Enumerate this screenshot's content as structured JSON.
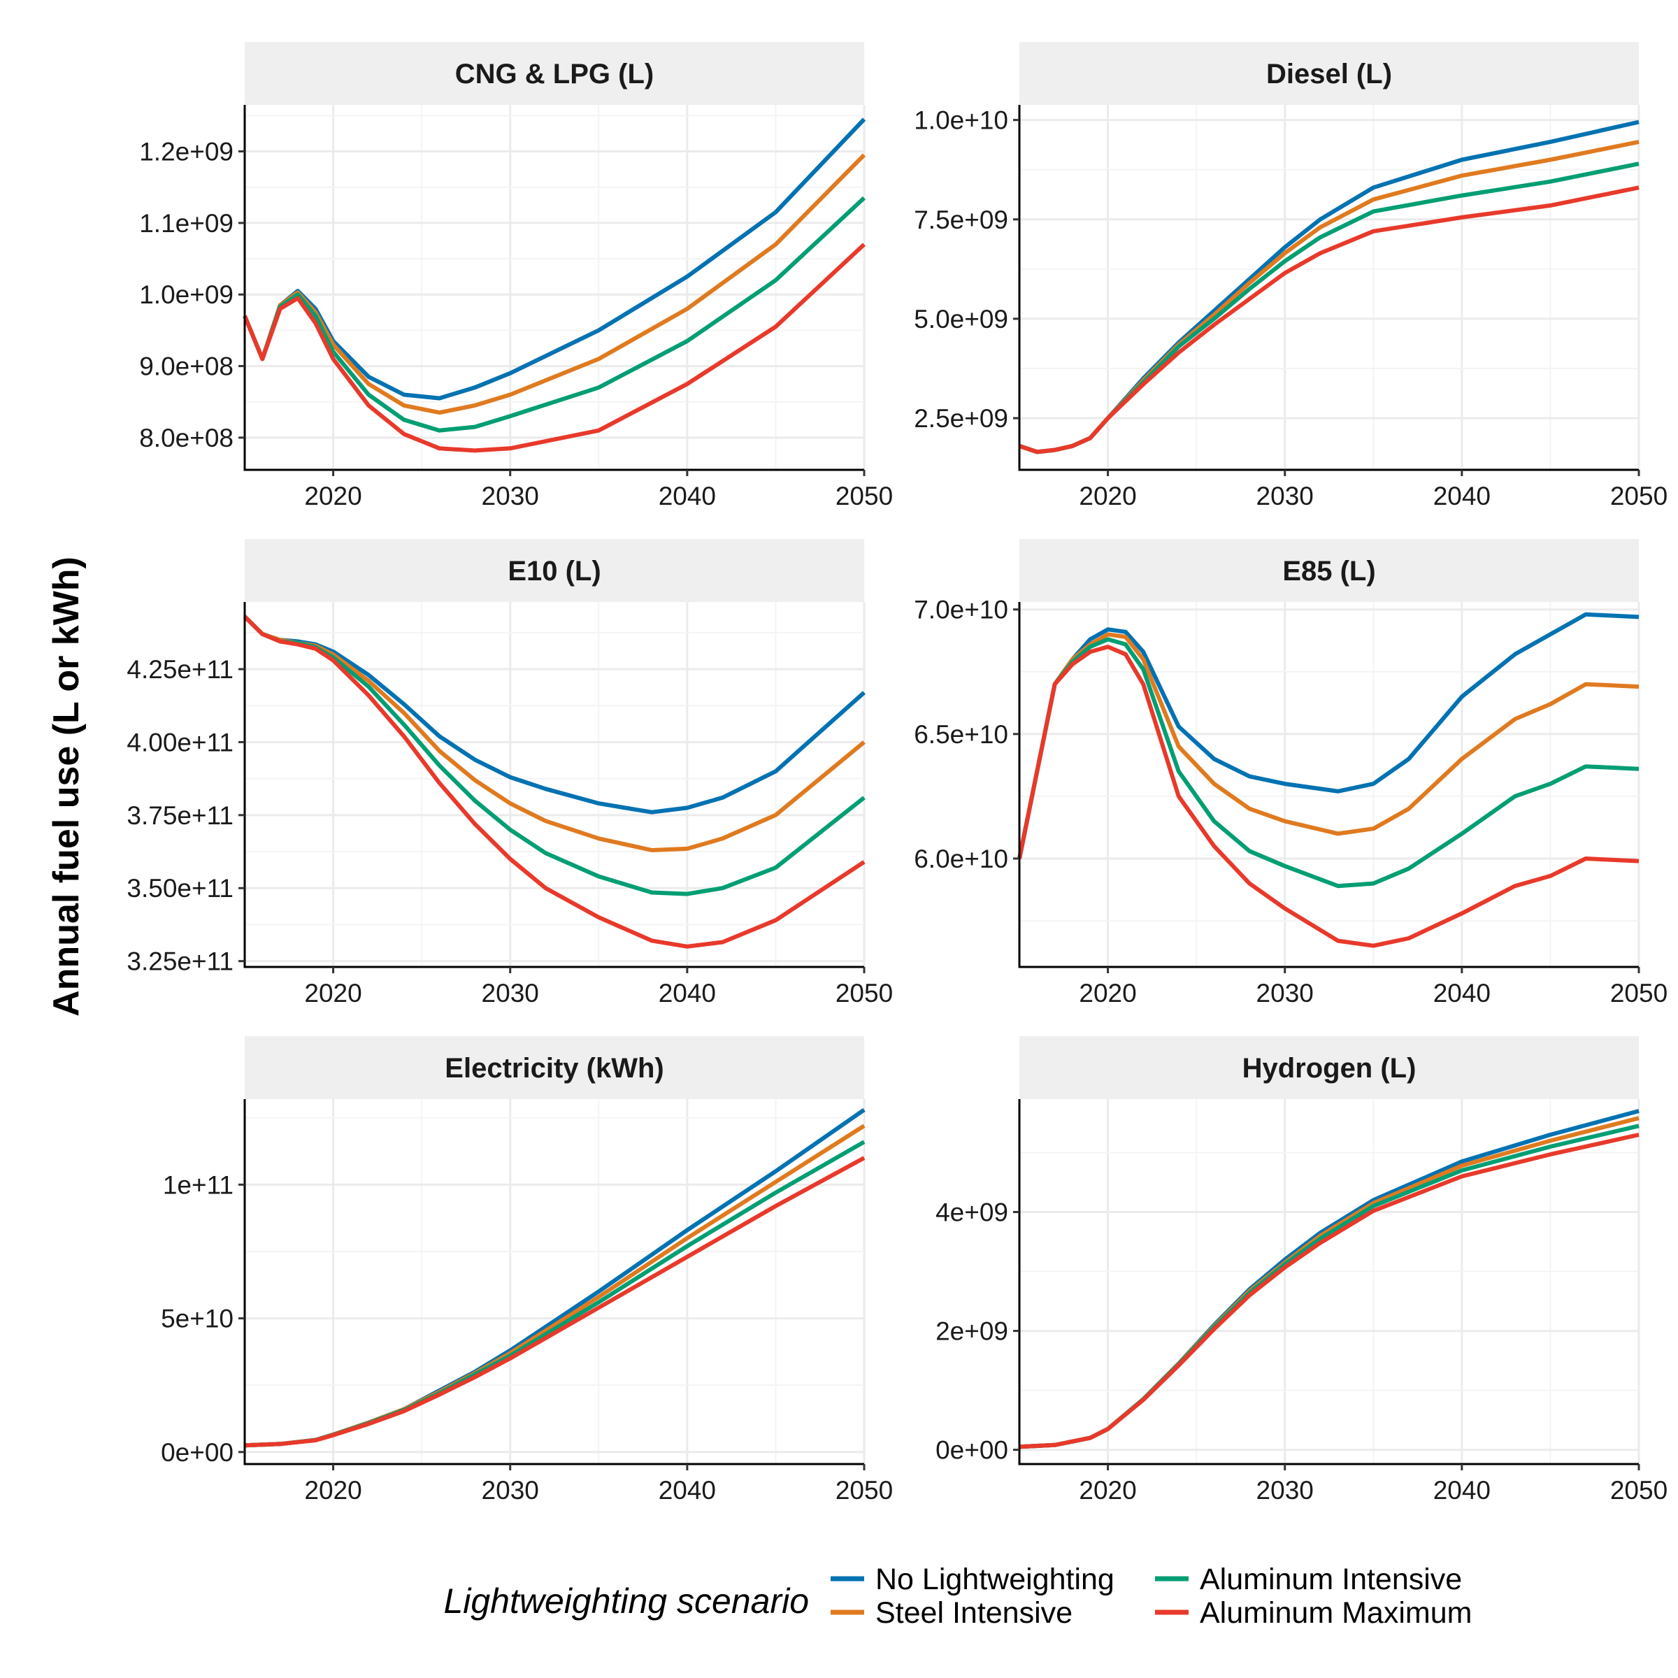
{
  "colors": {
    "No Lightweighting": "#0072B2",
    "Steel Intensive": "#E07A1F",
    "Aluminum Intensive": "#009E73",
    "Aluminum Maximum": "#E8392B"
  },
  "legend": {
    "title": "Lightweighting scenario",
    "items": [
      "No Lightweighting",
      "Steel Intensive",
      "Aluminum Intensive",
      "Aluminum Maximum"
    ]
  },
  "ylabel": "Annual fuel use (L or kWh)",
  "chart_data": [
    {
      "type": "line",
      "title": "CNG & LPG (L)",
      "xlim": [
        2015,
        2050
      ],
      "ylim": [
        755000000.0,
        1265000000.0
      ],
      "xticks": [
        2020,
        2030,
        2040,
        2050
      ],
      "yticks": [
        800000000.0,
        900000000.0,
        1000000000.0,
        1100000000.0,
        1200000000.0
      ],
      "ytick_labels": [
        "8.0e+08",
        "9.0e+08",
        "1.0e+09",
        "1.1e+09",
        "1.2e+09"
      ],
      "x": [
        2015,
        2016,
        2017,
        2018,
        2019,
        2020,
        2022,
        2024,
        2026,
        2028,
        2030,
        2035,
        2040,
        2045,
        2050
      ],
      "series": [
        {
          "name": "No Lightweighting",
          "values": [
            970000000.0,
            910000000.0,
            985000000.0,
            1005000000.0,
            980000000.0,
            935000000.0,
            885000000.0,
            860000000.0,
            855000000.0,
            870000000.0,
            890000000.0,
            950000000.0,
            1025000000.0,
            1115000000.0,
            1245000000.0
          ]
        },
        {
          "name": "Steel Intensive",
          "values": [
            970000000.0,
            910000000.0,
            985000000.0,
            1003000000.0,
            975000000.0,
            930000000.0,
            875000000.0,
            845000000.0,
            835000000.0,
            845000000.0,
            860000000.0,
            910000000.0,
            980000000.0,
            1070000000.0,
            1195000000.0
          ]
        },
        {
          "name": "Aluminum Intensive",
          "values": [
            970000000.0,
            910000000.0,
            983000000.0,
            1000000000.0,
            970000000.0,
            920000000.0,
            860000000.0,
            825000000.0,
            810000000.0,
            815000000.0,
            830000000.0,
            870000000.0,
            935000000.0,
            1020000000.0,
            1135000000.0
          ]
        },
        {
          "name": "Aluminum Maximum",
          "values": [
            970000000.0,
            910000000.0,
            980000000.0,
            995000000.0,
            960000000.0,
            910000000.0,
            845000000.0,
            805000000.0,
            785000000.0,
            782000000.0,
            785000000.0,
            810000000.0,
            875000000.0,
            955000000.0,
            1070000000.0
          ]
        }
      ]
    },
    {
      "type": "line",
      "title": "Diesel (L)",
      "xlim": [
        2015,
        2050
      ],
      "ylim": [
        1200000000.0,
        10380000000.0
      ],
      "xticks": [
        2020,
        2030,
        2040,
        2050
      ],
      "yticks": [
        2500000000.0,
        5000000000.0,
        7500000000.0,
        10000000000.0
      ],
      "ytick_labels": [
        "2.5e+09",
        "5.0e+09",
        "7.5e+09",
        "1.0e+10"
      ],
      "x": [
        2015,
        2016,
        2017,
        2018,
        2019,
        2020,
        2022,
        2024,
        2026,
        2028,
        2030,
        2032,
        2035,
        2040,
        2045,
        2050
      ],
      "series": [
        {
          "name": "No Lightweighting",
          "values": [
            1800000000.0,
            1650000000.0,
            1700000000.0,
            1800000000.0,
            2000000000.0,
            2500000000.0,
            3500000000.0,
            4400000000.0,
            5200000000.0,
            6000000000.0,
            6800000000.0,
            7500000000.0,
            8300000000.0,
            9000000000.0,
            9450000000.0,
            9950000000.0
          ]
        },
        {
          "name": "Steel Intensive",
          "values": [
            1800000000.0,
            1650000000.0,
            1700000000.0,
            1800000000.0,
            2000000000.0,
            2500000000.0,
            3450000000.0,
            4350000000.0,
            5100000000.0,
            5900000000.0,
            6650000000.0,
            7300000000.0,
            8000000000.0,
            8600000000.0,
            9000000000.0,
            9450000000.0
          ]
        },
        {
          "name": "Aluminum Intensive",
          "values": [
            1800000000.0,
            1650000000.0,
            1700000000.0,
            1800000000.0,
            2000000000.0,
            2500000000.0,
            3400000000.0,
            4300000000.0,
            5000000000.0,
            5750000000.0,
            6450000000.0,
            7050000000.0,
            7700000000.0,
            8100000000.0,
            8450000000.0,
            8900000000.0
          ]
        },
        {
          "name": "Aluminum Maximum",
          "values": [
            1800000000.0,
            1650000000.0,
            1700000000.0,
            1800000000.0,
            2000000000.0,
            2500000000.0,
            3350000000.0,
            4150000000.0,
            4850000000.0,
            5500000000.0,
            6150000000.0,
            6650000000.0,
            7200000000.0,
            7550000000.0,
            7850000000.0,
            8300000000.0
          ]
        }
      ]
    },
    {
      "type": "line",
      "title": "E10 (L)",
      "xlim": [
        2015,
        2050
      ],
      "ylim": [
        323000000000.0,
        448000000000.0
      ],
      "xticks": [
        2020,
        2030,
        2040,
        2050
      ],
      "yticks": [
        325000000000.0,
        350000000000.0,
        375000000000.0,
        400000000000.0,
        425000000000.0
      ],
      "ytick_labels": [
        "3.25e+11",
        "3.50e+11",
        "3.75e+11",
        "4.00e+11",
        "4.25e+11"
      ],
      "x": [
        2015,
        2016,
        2017,
        2018,
        2019,
        2020,
        2022,
        2024,
        2026,
        2028,
        2030,
        2032,
        2035,
        2038,
        2040,
        2042,
        2045,
        2050
      ],
      "series": [
        {
          "name": "No Lightweighting",
          "values": [
            443000000000.0,
            437000000000.0,
            435000000000.0,
            434500000000.0,
            433500000000.0,
            431000000000.0,
            423000000000.0,
            413000000000.0,
            402000000000.0,
            394000000000.0,
            388000000000.0,
            384000000000.0,
            379000000000.0,
            376000000000.0,
            377500000000.0,
            381000000000.0,
            390000000000.0,
            417000000000.0
          ]
        },
        {
          "name": "Steel Intensive",
          "values": [
            443000000000.0,
            437000000000.0,
            435000000000.0,
            434000000000.0,
            433000000000.0,
            430000000000.0,
            421000000000.0,
            410000000000.0,
            397000000000.0,
            387000000000.0,
            379000000000.0,
            373000000000.0,
            367000000000.0,
            363000000000.0,
            363500000000.0,
            367000000000.0,
            375000000000.0,
            400000000000.0
          ]
        },
        {
          "name": "Aluminum Intensive",
          "values": [
            443000000000.0,
            437000000000.0,
            434500000000.0,
            434000000000.0,
            432500000000.0,
            429000000000.0,
            419000000000.0,
            406000000000.0,
            392000000000.0,
            380000000000.0,
            370000000000.0,
            362000000000.0,
            354000000000.0,
            348500000000.0,
            348000000000.0,
            350000000000.0,
            357000000000.0,
            381000000000.0
          ]
        },
        {
          "name": "Aluminum Maximum",
          "values": [
            443000000000.0,
            437000000000.0,
            434500000000.0,
            433500000000.0,
            432000000000.0,
            428000000000.0,
            416000000000.0,
            402000000000.0,
            386000000000.0,
            372000000000.0,
            360000000000.0,
            350000000000.0,
            340000000000.0,
            332000000000.0,
            330000000000.0,
            331500000000.0,
            339000000000.0,
            359000000000.0
          ]
        }
      ]
    },
    {
      "type": "line",
      "title": "E85 (L)",
      "xlim": [
        2015,
        2050
      ],
      "ylim": [
        55650000000.0,
        70300000000.0
      ],
      "xticks": [
        2020,
        2030,
        2040,
        2050
      ],
      "yticks": [
        60000000000.0,
        65000000000.0,
        70000000000.0
      ],
      "ytick_labels": [
        "6.0e+10",
        "6.5e+10",
        "7.0e+10"
      ],
      "x": [
        2015,
        2017,
        2018,
        2019,
        2020,
        2021,
        2022,
        2024,
        2026,
        2028,
        2030,
        2033,
        2035,
        2037,
        2040,
        2043,
        2045,
        2047,
        2050
      ],
      "series": [
        {
          "name": "No Lightweighting",
          "values": [
            60000000000.0,
            67000000000.0,
            68000000000.0,
            68800000000.0,
            69200000000.0,
            69100000000.0,
            68300000000.0,
            65300000000.0,
            64000000000.0,
            63300000000.0,
            63000000000.0,
            62700000000.0,
            63000000000.0,
            64000000000.0,
            66500000000.0,
            68200000000.0,
            69000000000.0,
            69800000000.0,
            69700000000.0
          ]
        },
        {
          "name": "Steel Intensive",
          "values": [
            60000000000.0,
            67000000000.0,
            68000000000.0,
            68600000000.0,
            69000000000.0,
            68900000000.0,
            68000000000.0,
            64500000000.0,
            63000000000.0,
            62000000000.0,
            61500000000.0,
            61000000000.0,
            61200000000.0,
            62000000000.0,
            64000000000.0,
            65600000000.0,
            66200000000.0,
            67000000000.0,
            66900000000.0
          ]
        },
        {
          "name": "Aluminum Intensive",
          "values": [
            60000000000.0,
            67000000000.0,
            67900000000.0,
            68500000000.0,
            68800000000.0,
            68600000000.0,
            67600000000.0,
            63500000000.0,
            61500000000.0,
            60300000000.0,
            59700000000.0,
            58900000000.0,
            59000000000.0,
            59600000000.0,
            61000000000.0,
            62500000000.0,
            63000000000.0,
            63700000000.0,
            63600000000.0
          ]
        },
        {
          "name": "Aluminum Maximum",
          "values": [
            60000000000.0,
            67000000000.0,
            67800000000.0,
            68300000000.0,
            68500000000.0,
            68200000000.0,
            67000000000.0,
            62500000000.0,
            60500000000.0,
            59000000000.0,
            58000000000.0,
            56700000000.0,
            56500000000.0,
            56800000000.0,
            57800000000.0,
            58900000000.0,
            59300000000.0,
            60000000000.0,
            59900000000.0
          ]
        }
      ]
    },
    {
      "type": "line",
      "title": "Electricity (kWh)",
      "xlim": [
        2015,
        2050
      ],
      "ylim": [
        -4500000000.0,
        132000000000.0
      ],
      "xticks": [
        2020,
        2030,
        2040,
        2050
      ],
      "yticks": [
        0,
        50000000000.0,
        100000000000.0
      ],
      "ytick_labels": [
        "0e+00",
        "5e+10",
        "1e+11"
      ],
      "x": [
        2015,
        2017,
        2019,
        2020,
        2022,
        2024,
        2026,
        2028,
        2030,
        2035,
        2040,
        2045,
        2050
      ],
      "series": [
        {
          "name": "No Lightweighting",
          "values": [
            2500000000.0,
            3000000000.0,
            4500000000.0,
            6500000000.0,
            11000000000.0,
            16000000000.0,
            23000000000.0,
            30000000000.0,
            38000000000.0,
            60000000000.0,
            83000000000.0,
            105000000000.0,
            128000000000.0
          ]
        },
        {
          "name": "Steel Intensive",
          "values": [
            2500000000.0,
            3000000000.0,
            4500000000.0,
            6500000000.0,
            11000000000.0,
            16000000000.0,
            22500000000.0,
            29500000000.0,
            37000000000.0,
            58000000000.0,
            80000000000.0,
            101000000000.0,
            122000000000.0
          ]
        },
        {
          "name": "Aluminum Intensive",
          "values": [
            2500000000.0,
            3000000000.0,
            4500000000.0,
            6400000000.0,
            10800000000.0,
            15700000000.0,
            22000000000.0,
            29000000000.0,
            36000000000.0,
            56000000000.0,
            77000000000.0,
            97000000000.0,
            116000000000.0
          ]
        },
        {
          "name": "Aluminum Maximum",
          "values": [
            2500000000.0,
            3000000000.0,
            4400000000.0,
            6300000000.0,
            10500000000.0,
            15300000000.0,
            21500000000.0,
            28000000000.0,
            35000000000.0,
            54000000000.0,
            73000000000.0,
            92000000000.0,
            110000000000.0
          ]
        }
      ]
    },
    {
      "type": "line",
      "title": "Hydrogen (L)",
      "xlim": [
        2015,
        2050
      ],
      "ylim": [
        -240000000.0,
        5900000000.0
      ],
      "xticks": [
        2020,
        2030,
        2040,
        2050
      ],
      "yticks": [
        0,
        2000000000.0,
        4000000000.0
      ],
      "ytick_labels": [
        "0e+00",
        "2e+09",
        "4e+09"
      ],
      "x": [
        2015,
        2017,
        2019,
        2020,
        2022,
        2024,
        2026,
        2028,
        2030,
        2032,
        2035,
        2040,
        2045,
        2050
      ],
      "series": [
        {
          "name": "No Lightweighting",
          "values": [
            50000000.0,
            80000000.0,
            200000000.0,
            350000000.0,
            850000000.0,
            1450000000.0,
            2100000000.0,
            2700000000.0,
            3200000000.0,
            3650000000.0,
            4200000000.0,
            4850000000.0,
            5300000000.0,
            5700000000.0
          ]
        },
        {
          "name": "Steel Intensive",
          "values": [
            50000000.0,
            80000000.0,
            200000000.0,
            350000000.0,
            850000000.0,
            1450000000.0,
            2080000000.0,
            2670000000.0,
            3150000000.0,
            3600000000.0,
            4150000000.0,
            4780000000.0,
            5200000000.0,
            5580000000.0
          ]
        },
        {
          "name": "Aluminum Intensive",
          "values": [
            50000000.0,
            80000000.0,
            200000000.0,
            350000000.0,
            850000000.0,
            1440000000.0,
            2060000000.0,
            2640000000.0,
            3120000000.0,
            3550000000.0,
            4100000000.0,
            4700000000.0,
            5100000000.0,
            5450000000.0
          ]
        },
        {
          "name": "Aluminum Maximum",
          "values": [
            50000000.0,
            80000000.0,
            200000000.0,
            350000000.0,
            840000000.0,
            1420000000.0,
            2030000000.0,
            2600000000.0,
            3070000000.0,
            3480000000.0,
            4020000000.0,
            4600000000.0,
            4970000000.0,
            5300000000.0
          ]
        }
      ]
    }
  ]
}
